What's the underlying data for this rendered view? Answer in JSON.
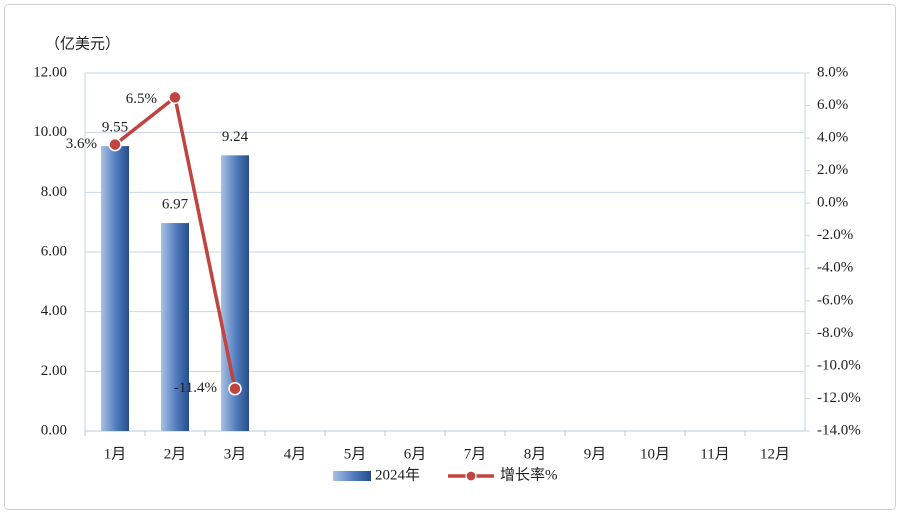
{
  "chart_data": {
    "type": "bar_line",
    "y_axis_label": "（亿美元）",
    "categories": [
      "1月",
      "2月",
      "3月",
      "4月",
      "5月",
      "6月",
      "7月",
      "8月",
      "9月",
      "10月",
      "11月",
      "12月"
    ],
    "series": [
      {
        "name": "2024年",
        "type": "bar",
        "color": "#3d68a8",
        "values": [
          9.55,
          6.97,
          9.24,
          null,
          null,
          null,
          null,
          null,
          null,
          null,
          null,
          null
        ]
      },
      {
        "name": "增长率%",
        "type": "line",
        "axis": "y2",
        "color": "#c0443f",
        "values": [
          3.6,
          6.5,
          -11.4,
          null,
          null,
          null,
          null,
          null,
          null,
          null,
          null,
          null
        ],
        "value_labels": [
          "3.6%",
          "6.5%",
          "-11.4%",
          null,
          null,
          null,
          null,
          null,
          null,
          null,
          null,
          null
        ]
      }
    ],
    "ylim": [
      0,
      12
    ],
    "yticks": [
      {
        "value": 0,
        "label": "0.00"
      },
      {
        "value": 2,
        "label": "2.00"
      },
      {
        "value": 4,
        "label": "4.00"
      },
      {
        "value": 6,
        "label": "6.00"
      },
      {
        "value": 8,
        "label": "8.00"
      },
      {
        "value": 10,
        "label": "10.00"
      },
      {
        "value": 12,
        "label": "12.00"
      }
    ],
    "y2lim": [
      -14,
      8
    ],
    "y2ticks": [
      {
        "value": -14,
        "label": "-14.0%"
      },
      {
        "value": -12,
        "label": "-12.0%"
      },
      {
        "value": -10,
        "label": "-10.0%"
      },
      {
        "value": -8,
        "label": "-8.0%"
      },
      {
        "value": -6,
        "label": "-6.0%"
      },
      {
        "value": -4,
        "label": "-4.0%"
      },
      {
        "value": -2,
        "label": "-2.0%"
      },
      {
        "value": 0,
        "label": "0.0%"
      },
      {
        "value": 2,
        "label": "2.0%"
      },
      {
        "value": 4,
        "label": "4.0%"
      },
      {
        "value": 6,
        "label": "6.0%"
      },
      {
        "value": 8,
        "label": "8.0%"
      }
    ],
    "grid": true,
    "legend": "bottom"
  }
}
